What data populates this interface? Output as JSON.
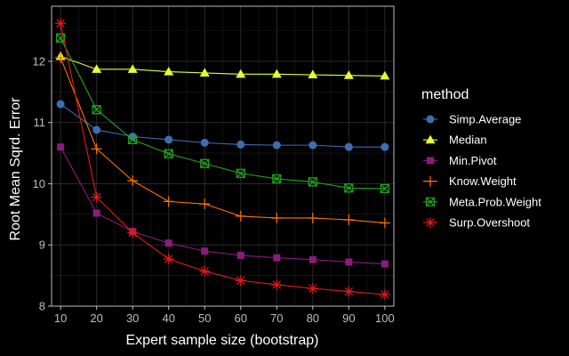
{
  "chart_data": {
    "type": "line",
    "title": "",
    "xlabel": "Expert sample size (bootstrap)",
    "ylabel": "Root Mean Sqrd. Error",
    "x": [
      10,
      20,
      30,
      40,
      50,
      60,
      70,
      80,
      90,
      100
    ],
    "xlim": [
      7.5,
      102.5
    ],
    "ylim": [
      8.0,
      12.9
    ],
    "yticks": [
      8,
      9,
      10,
      11,
      12
    ],
    "grid": true,
    "legend": {
      "title": "method",
      "position": "right"
    },
    "series": [
      {
        "name": "Simp.Average",
        "color": "#3b6eb3",
        "marker": "circle",
        "values": [
          11.3,
          10.88,
          10.77,
          10.72,
          10.67,
          10.64,
          10.63,
          10.63,
          10.6,
          10.6
        ]
      },
      {
        "name": "Median",
        "color": "#e5ff33",
        "marker": "triangle",
        "values": [
          12.08,
          11.87,
          11.87,
          11.83,
          11.81,
          11.79,
          11.79,
          11.78,
          11.77,
          11.76
        ]
      },
      {
        "name": "Min.Pivot",
        "color": "#8b1a7e",
        "marker": "square",
        "values": [
          10.6,
          9.52,
          9.22,
          9.03,
          8.9,
          8.83,
          8.79,
          8.76,
          8.72,
          8.69
        ]
      },
      {
        "name": "Know.Weight",
        "color": "#ff7300",
        "marker": "plus",
        "values": [
          12.06,
          10.57,
          10.05,
          9.71,
          9.67,
          9.47,
          9.44,
          9.44,
          9.41,
          9.36
        ]
      },
      {
        "name": "Meta.Prob.Weight",
        "color": "#20a81c",
        "marker": "boxcross",
        "values": [
          12.38,
          11.21,
          10.72,
          10.49,
          10.33,
          10.17,
          10.08,
          10.03,
          9.93,
          9.92
        ]
      },
      {
        "name": "Surp.Overshoot",
        "color": "#e31a1c",
        "marker": "asterisk",
        "values": [
          12.62,
          9.78,
          9.2,
          8.77,
          8.57,
          8.42,
          8.35,
          8.29,
          8.24,
          8.19
        ]
      }
    ]
  }
}
